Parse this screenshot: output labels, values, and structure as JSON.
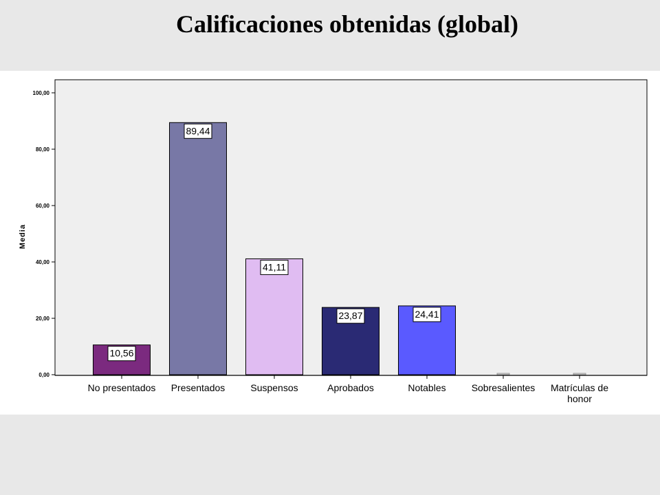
{
  "slide": {
    "title": "Calificaciones obtenidas (global)"
  },
  "chart_data": {
    "type": "bar",
    "title": "Calificaciones obtenidas (global)",
    "xlabel": "",
    "ylabel": "Media",
    "ylim": [
      0,
      100
    ],
    "yticks": [
      "0,00",
      "20,00",
      "40,00",
      "60,00",
      "80,00",
      "100,00"
    ],
    "categories": [
      "No presentados",
      "Presentados",
      "Suspensos",
      "Aprobados",
      "Notables",
      "Sobresalientes",
      "Matrículas de honor"
    ],
    "values": [
      10.56,
      89.44,
      41.11,
      23.87,
      24.41,
      0,
      0
    ],
    "value_labels": [
      "10,56",
      "89,44",
      "41,11",
      "23,87",
      "24,41",
      "",
      ""
    ],
    "colors": [
      "#7b2a7f",
      "#7878a6",
      "#e0bcf2",
      "#2a2a74",
      "#5a5aff",
      "#d0d0d0",
      "#d0d0d0"
    ],
    "grid": false,
    "background": "#efefef"
  }
}
